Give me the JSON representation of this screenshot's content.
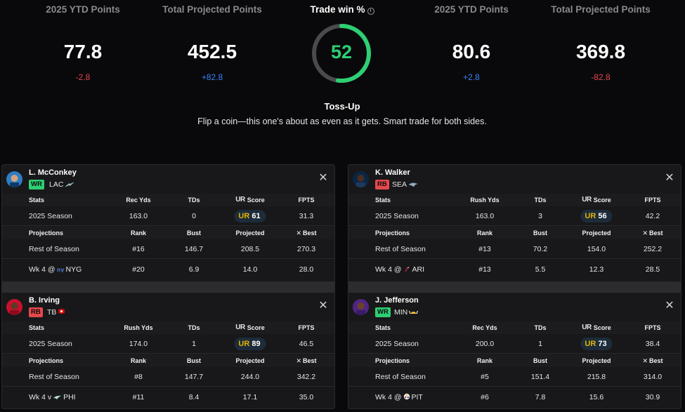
{
  "summary": {
    "left_ytd": {
      "label": "2025 YTD Points",
      "value": "77.8",
      "delta": "-2.8"
    },
    "left_proj": {
      "label": "Total Projected Points",
      "value": "452.5",
      "delta": "+82.8"
    },
    "right_ytd": {
      "label": "2025 YTD Points",
      "value": "80.6",
      "delta": "+2.8"
    },
    "right_proj": {
      "label": "Total Projected Points",
      "value": "369.8",
      "delta": "-82.8"
    },
    "trade_win_label": "Trade win %",
    "trade_win_value": "52",
    "trade_win_fraction": 0.52,
    "verdict": "Toss-Up",
    "verdict_desc": "Flip a coin—this one's about as even as it gets. Smart trade for both sides."
  },
  "colors": {
    "gauge": "#2dcf73",
    "wr": "#2dcf73",
    "rb": "#e5484d",
    "negative": "#e5484d",
    "positive": "#3b82f6"
  },
  "players": {
    "mcconkey": {
      "name": "L. McConkey",
      "position": "WR",
      "team": "LAC",
      "headers": {
        "stats": "Stats",
        "yds": "Rec Yds",
        "tds": "TDs",
        "score": "Score",
        "fpts": "FPTS"
      },
      "season": {
        "label": "2025 Season",
        "yds": "163.0",
        "tds": "0",
        "score": "61",
        "fpts": "31.3"
      },
      "proj_headers": {
        "projections": "Projections",
        "rank": "Rank",
        "bust": "Bust",
        "projected": "Projected",
        "best": "Best"
      },
      "ros": {
        "label": "Rest of Season",
        "rank": "#16",
        "bust": "146.7",
        "projected": "208.5",
        "best": "270.3"
      },
      "wk": {
        "label_prefix": "Wk 4 @",
        "opponent": "NYG",
        "rank": "#20",
        "bust": "6.9",
        "projected": "14.0",
        "best": "28.0"
      }
    },
    "irving": {
      "name": "B. Irving",
      "position": "RB",
      "team": "TB",
      "headers": {
        "stats": "Stats",
        "yds": "Rush Yds",
        "tds": "TDs",
        "score": "Score",
        "fpts": "FPTS"
      },
      "season": {
        "label": "2025 Season",
        "yds": "174.0",
        "tds": "1",
        "score": "89",
        "fpts": "46.5"
      },
      "proj_headers": {
        "projections": "Projections",
        "rank": "Rank",
        "bust": "Bust",
        "projected": "Projected",
        "best": "Best"
      },
      "ros": {
        "label": "Rest of Season",
        "rank": "#8",
        "bust": "147.7",
        "projected": "244.0",
        "best": "342.2"
      },
      "wk": {
        "label_prefix": "Wk 4 v",
        "opponent": "PHI",
        "rank": "#11",
        "bust": "8.4",
        "projected": "17.1",
        "best": "35.0"
      }
    },
    "walker": {
      "name": "K. Walker",
      "position": "RB",
      "team": "SEA",
      "headers": {
        "stats": "Stats",
        "yds": "Rush Yds",
        "tds": "TDs",
        "score": "Score",
        "fpts": "FPTS"
      },
      "season": {
        "label": "2025 Season",
        "yds": "163.0",
        "tds": "3",
        "score": "56",
        "fpts": "42.2"
      },
      "proj_headers": {
        "projections": "Projections",
        "rank": "Rank",
        "bust": "Bust",
        "projected": "Projected",
        "best": "Best"
      },
      "ros": {
        "label": "Rest of Season",
        "rank": "#13",
        "bust": "70.2",
        "projected": "154.0",
        "best": "252.2"
      },
      "wk": {
        "label_prefix": "Wk 4 @",
        "opponent": "ARI",
        "rank": "#13",
        "bust": "5.5",
        "projected": "12.3",
        "best": "28.5"
      }
    },
    "jefferson": {
      "name": "J. Jefferson",
      "position": "WR",
      "team": "MIN",
      "headers": {
        "stats": "Stats",
        "yds": "Rec Yds",
        "tds": "TDs",
        "score": "Score",
        "fpts": "FPTS"
      },
      "season": {
        "label": "2025 Season",
        "yds": "200.0",
        "tds": "1",
        "score": "73",
        "fpts": "38.4"
      },
      "proj_headers": {
        "projections": "Projections",
        "rank": "Rank",
        "bust": "Bust",
        "projected": "Projected",
        "best": "Best"
      },
      "ros": {
        "label": "Rest of Season",
        "rank": "#5",
        "bust": "151.4",
        "projected": "215.8",
        "best": "314.0"
      },
      "wk": {
        "label_prefix": "Wk 4 @",
        "opponent": "PIT",
        "rank": "#6",
        "bust": "7.8",
        "projected": "15.6",
        "best": "30.9"
      }
    }
  },
  "icons": {
    "close": "close-icon",
    "info": "info-icon",
    "best": "sparkle-icon",
    "ur": "ur-logo-icon"
  }
}
